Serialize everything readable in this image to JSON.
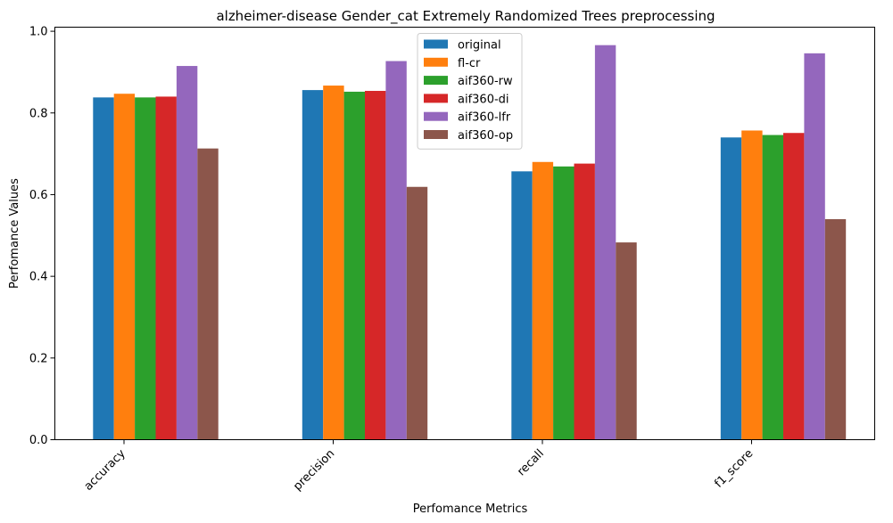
{
  "chart_data": {
    "type": "bar",
    "title": "alzheimer-disease Gender_cat Extremely Randomized Trees preprocessing",
    "xlabel": "Perfomance Metrics",
    "ylabel": "Perfomance Values",
    "ylim": [
      0,
      1.01
    ],
    "yticks": [
      "0.0",
      "0.2",
      "0.4",
      "0.6",
      "0.8",
      "1.0"
    ],
    "categories": [
      "accuracy",
      "precision",
      "recall",
      "f1_score"
    ],
    "legend_position": "top-center",
    "grid": false,
    "series": [
      {
        "name": "original",
        "color": "#1f77b4",
        "values": [
          0.838,
          0.856,
          0.657,
          0.74
        ]
      },
      {
        "name": "fl-cr",
        "color": "#ff7f0e",
        "values": [
          0.847,
          0.867,
          0.68,
          0.757
        ]
      },
      {
        "name": "aif360-rw",
        "color": "#2ca02c",
        "values": [
          0.838,
          0.852,
          0.669,
          0.746
        ]
      },
      {
        "name": "aif360-di",
        "color": "#d62728",
        "values": [
          0.84,
          0.854,
          0.676,
          0.751
        ]
      },
      {
        "name": "aif360-lfr",
        "color": "#9467bd",
        "values": [
          0.915,
          0.927,
          0.966,
          0.946
        ]
      },
      {
        "name": "aif360-op",
        "color": "#8c564b",
        "values": [
          0.713,
          0.619,
          0.483,
          0.54
        ]
      }
    ]
  }
}
